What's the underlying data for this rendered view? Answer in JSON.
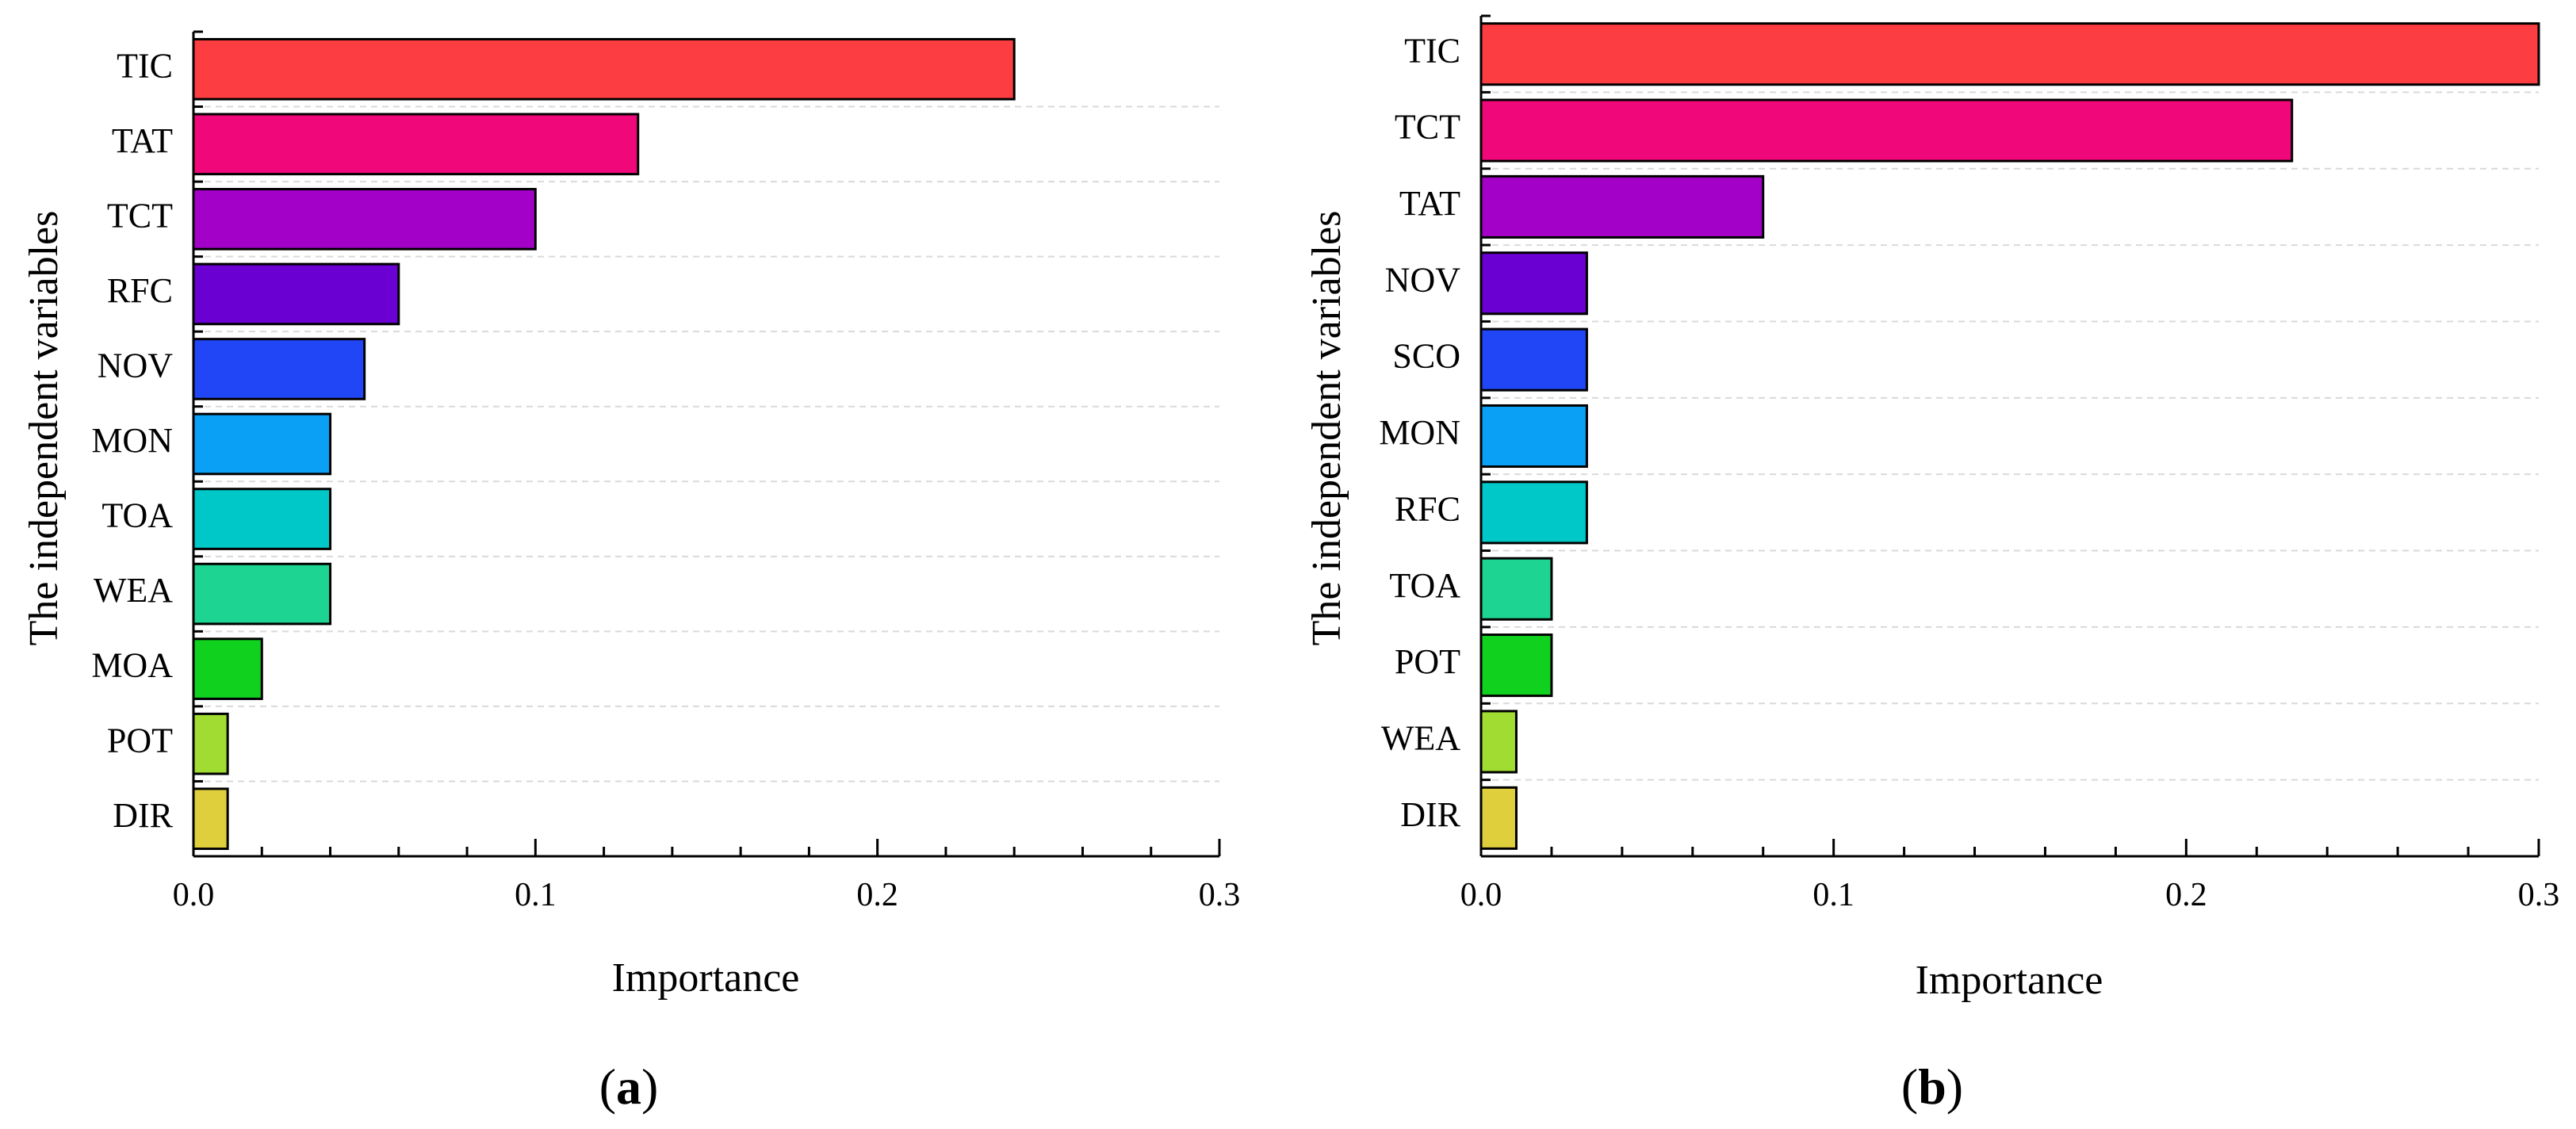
{
  "chart_data": [
    {
      "type": "bar",
      "orientation": "horizontal",
      "panel_label": "a",
      "xlabel": "Importance",
      "ylabel": "The independent variables",
      "xlim": [
        0,
        0.3
      ],
      "xticks": [
        "0.0",
        "0.1",
        "0.2",
        "0.3"
      ],
      "grid": true,
      "categories": [
        "TIC",
        "TAT",
        "TCT",
        "RFC",
        "NOV",
        "MON",
        "TOA",
        "WEA",
        "MOA",
        "POT",
        "DIR"
      ],
      "values": [
        0.24,
        0.13,
        0.1,
        0.06,
        0.05,
        0.04,
        0.04,
        0.04,
        0.02,
        0.01,
        0.01
      ],
      "colors": [
        "#fc3d41",
        "#f0087a",
        "#a300c8",
        "#6a00d2",
        "#2046f5",
        "#0aa0f5",
        "#00c8c8",
        "#1ed492",
        "#0fd11e",
        "#a0dc32",
        "#e0cf3c"
      ]
    },
    {
      "type": "bar",
      "orientation": "horizontal",
      "panel_label": "b",
      "xlabel": "Importance",
      "ylabel": "The independent variables",
      "xlim": [
        0,
        0.3
      ],
      "xticks": [
        "0.0",
        "0.1",
        "0.2",
        "0.3"
      ],
      "grid": true,
      "categories": [
        "TIC",
        "TCT",
        "TAT",
        "NOV",
        "SCO",
        "MON",
        "RFC",
        "TOA",
        "POT",
        "WEA",
        "DIR"
      ],
      "values": [
        0.3,
        0.23,
        0.08,
        0.03,
        0.03,
        0.03,
        0.03,
        0.02,
        0.02,
        0.01,
        0.01
      ],
      "colors": [
        "#fc3d41",
        "#f0087a",
        "#a300c8",
        "#6a00d2",
        "#2046f5",
        "#0aa0f5",
        "#00c8c8",
        "#1ed492",
        "#0fd11e",
        "#a0dc32",
        "#e0cf3c"
      ]
    }
  ]
}
